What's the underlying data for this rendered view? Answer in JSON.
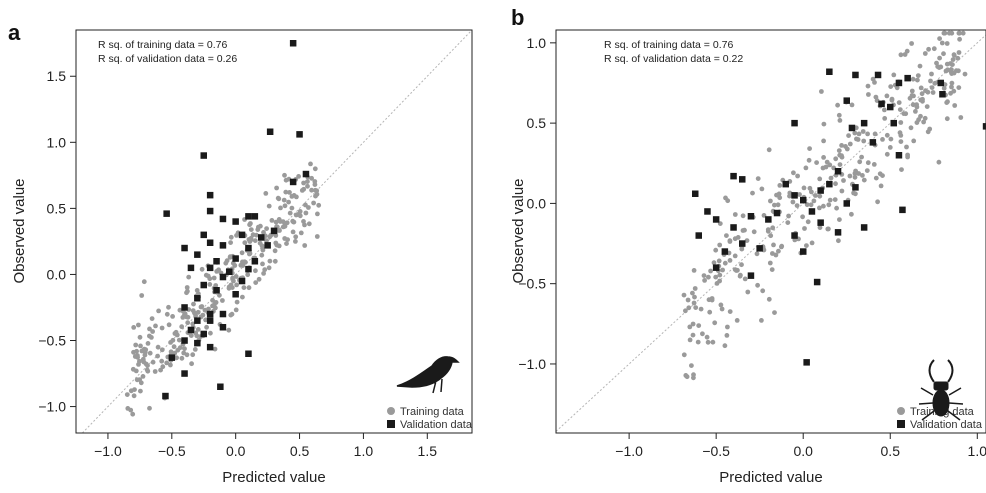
{
  "chart_data": [
    {
      "type": "scatter",
      "panel_label": "a",
      "xlabel": "Predicted value",
      "ylabel": "Observed value",
      "xlim": [
        -1.25,
        1.85
      ],
      "ylim": [
        -1.2,
        1.85
      ],
      "xticks": [
        -1.0,
        -0.5,
        0.0,
        0.5,
        1.0,
        1.5
      ],
      "yticks": [
        -1.0,
        -0.5,
        0.0,
        0.5,
        1.0,
        1.5
      ],
      "xtick_labels": [
        "−1.0",
        "−0.5",
        "0.0",
        "0.5",
        "1.0",
        "1.5"
      ],
      "ytick_labels": [
        "−1.0",
        "−0.5",
        "0.0",
        "0.5",
        "1.0",
        "1.5"
      ],
      "annotations": [
        "R sq. of training data = 0.76",
        "R sq. of validation data = 0.26"
      ],
      "legend_position": "bottom-right",
      "icon": "bird-silhouette",
      "diagonal_line": true,
      "series": [
        {
          "name": "Training data",
          "marker": "circle",
          "color": "#9a9a9a",
          "training_cloud": {
            "n": 330,
            "x_range": [
              -0.85,
              0.65
            ],
            "slope": 0.95,
            "offset": 0.02,
            "noise": 0.17,
            "seed": 11
          }
        },
        {
          "name": "Validation data",
          "marker": "square",
          "color": "#1a1a1a",
          "points": [
            [
              0.45,
              1.75
            ],
            [
              0.5,
              1.06
            ],
            [
              0.27,
              1.08
            ],
            [
              -0.25,
              0.9
            ],
            [
              0.55,
              0.76
            ],
            [
              0.45,
              0.7
            ],
            [
              -0.54,
              0.46
            ],
            [
              -0.2,
              0.6
            ],
            [
              -0.2,
              0.48
            ],
            [
              -0.1,
              0.42
            ],
            [
              0.1,
              0.44
            ],
            [
              0.15,
              0.44
            ],
            [
              0.0,
              0.4
            ],
            [
              0.3,
              0.33
            ],
            [
              -0.25,
              0.3
            ],
            [
              0.05,
              0.3
            ],
            [
              0.2,
              0.28
            ],
            [
              -0.4,
              0.2
            ],
            [
              -0.2,
              0.24
            ],
            [
              -0.1,
              0.22
            ],
            [
              0.1,
              0.2
            ],
            [
              0.25,
              0.22
            ],
            [
              -0.3,
              0.15
            ],
            [
              -0.15,
              0.1
            ],
            [
              0.0,
              0.12
            ],
            [
              0.15,
              0.1
            ],
            [
              -0.35,
              0.05
            ],
            [
              -0.2,
              0.05
            ],
            [
              -0.05,
              0.02
            ],
            [
              0.1,
              0.04
            ],
            [
              -0.1,
              -0.02
            ],
            [
              0.05,
              -0.05
            ],
            [
              -0.25,
              -0.08
            ],
            [
              -0.15,
              -0.12
            ],
            [
              0.0,
              -0.15
            ],
            [
              -0.3,
              -0.18
            ],
            [
              -0.4,
              -0.25
            ],
            [
              -0.2,
              -0.3
            ],
            [
              -0.1,
              -0.3
            ],
            [
              -0.3,
              -0.35
            ],
            [
              -0.2,
              -0.35
            ],
            [
              -0.1,
              -0.4
            ],
            [
              -0.35,
              -0.42
            ],
            [
              -0.25,
              -0.45
            ],
            [
              -0.4,
              -0.5
            ],
            [
              -0.3,
              -0.52
            ],
            [
              -0.2,
              -0.55
            ],
            [
              -0.5,
              -0.63
            ],
            [
              0.1,
              -0.6
            ],
            [
              -0.12,
              -0.85
            ],
            [
              -0.55,
              -0.92
            ],
            [
              -0.4,
              -0.75
            ]
          ]
        }
      ]
    },
    {
      "type": "scatter",
      "panel_label": "b",
      "xlabel": "Predicted value",
      "ylabel": "Observed value",
      "xlim": [
        -1.42,
        1.05
      ],
      "ylim": [
        -1.43,
        1.08
      ],
      "xticks": [
        -1.0,
        -0.5,
        0.0,
        0.5,
        1.0
      ],
      "yticks": [
        -1.0,
        -0.5,
        0.0,
        0.5,
        1.0
      ],
      "xtick_labels": [
        "−1.0",
        "−0.5",
        "0.0",
        "0.5",
        "1.0"
      ],
      "ytick_labels": [
        "−1.0",
        "−0.5",
        "0.0",
        "0.5",
        "1.0"
      ],
      "annotations": [
        "R sq. of training data = 0.76",
        "R sq. of validation data = 0.22"
      ],
      "legend_position": "bottom-right",
      "icon": "stag-beetle-silhouette",
      "diagonal_line": true,
      "series": [
        {
          "name": "Training data",
          "marker": "circle",
          "color": "#9a9a9a",
          "training_cloud": {
            "n": 360,
            "x_range": [
              -0.7,
              0.95
            ],
            "slope": 1.0,
            "offset": 0.0,
            "noise": 0.2,
            "seed": 29
          }
        },
        {
          "name": "Validation data",
          "marker": "square",
          "color": "#1a1a1a",
          "points": [
            [
              0.15,
              0.82
            ],
            [
              0.3,
              0.8
            ],
            [
              0.43,
              0.8
            ],
            [
              0.6,
              0.78
            ],
            [
              0.55,
              0.75
            ],
            [
              0.79,
              0.75
            ],
            [
              0.8,
              0.68
            ],
            [
              0.25,
              0.64
            ],
            [
              0.45,
              0.62
            ],
            [
              0.5,
              0.6
            ],
            [
              -0.05,
              0.5
            ],
            [
              0.35,
              0.5
            ],
            [
              0.28,
              0.47
            ],
            [
              0.52,
              0.5
            ],
            [
              1.05,
              0.48
            ],
            [
              0.4,
              0.38
            ],
            [
              0.55,
              0.3
            ],
            [
              -0.4,
              0.17
            ],
            [
              -0.35,
              0.15
            ],
            [
              0.2,
              0.2
            ],
            [
              0.3,
              0.1
            ],
            [
              0.1,
              0.08
            ],
            [
              -0.62,
              0.06
            ],
            [
              -0.1,
              0.12
            ],
            [
              0.15,
              0.12
            ],
            [
              -0.55,
              -0.05
            ],
            [
              -0.05,
              0.05
            ],
            [
              0.0,
              0.02
            ],
            [
              0.25,
              0.0
            ],
            [
              -0.5,
              -0.1
            ],
            [
              -0.3,
              -0.08
            ],
            [
              -0.15,
              -0.06
            ],
            [
              0.05,
              -0.05
            ],
            [
              -0.4,
              -0.15
            ],
            [
              -0.2,
              -0.1
            ],
            [
              0.1,
              -0.12
            ],
            [
              0.35,
              -0.15
            ],
            [
              -0.6,
              -0.2
            ],
            [
              -0.35,
              -0.25
            ],
            [
              -0.05,
              -0.2
            ],
            [
              0.2,
              -0.18
            ],
            [
              -0.45,
              -0.3
            ],
            [
              -0.25,
              -0.28
            ],
            [
              0.0,
              -0.3
            ],
            [
              -0.5,
              -0.4
            ],
            [
              -0.3,
              -0.45
            ],
            [
              0.57,
              -0.04
            ],
            [
              0.08,
              -0.49
            ],
            [
              0.02,
              -0.99
            ]
          ]
        }
      ]
    }
  ]
}
